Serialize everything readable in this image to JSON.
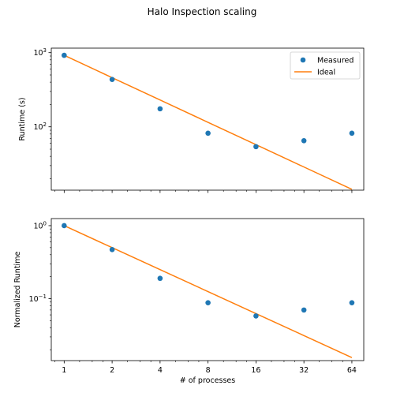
{
  "figure": {
    "title": "Halo Inspection scaling"
  },
  "colors": {
    "measured": "#1f77b4",
    "ideal": "#ff7f0e"
  },
  "chart_data": [
    {
      "type": "scatter",
      "title": "",
      "xlabel": "",
      "ylabel": "Runtime (s)",
      "xscale": "log2",
      "yscale": "log10",
      "x": [
        1,
        2,
        4,
        8,
        16,
        32,
        64
      ],
      "xlim": [
        0.83,
        76
      ],
      "ylim": [
        14,
        1150
      ],
      "yticks": [
        {
          "value": 100,
          "base": "10",
          "exp": "2"
        },
        {
          "value": 1000,
          "base": "10",
          "exp": "3"
        }
      ],
      "grid": false,
      "legend": "top-right",
      "series": [
        {
          "name": "Measured",
          "style": "markers",
          "values": [
            920,
            435,
            175,
            82,
            54,
            65,
            82
          ]
        },
        {
          "name": "Ideal",
          "style": "line",
          "values": [
            920,
            460,
            230,
            115,
            57.5,
            28.75,
            14.375
          ]
        }
      ]
    },
    {
      "type": "scatter",
      "title": "",
      "xlabel": "# of processes",
      "ylabel": "Normalized Runtime",
      "xscale": "log2",
      "yscale": "log10",
      "x": [
        1,
        2,
        4,
        8,
        16,
        32,
        64
      ],
      "xticks": [
        "1",
        "2",
        "4",
        "8",
        "16",
        "32",
        "64"
      ],
      "xlim": [
        0.83,
        76
      ],
      "ylim": [
        0.0142,
        1.25
      ],
      "yticks": [
        {
          "value": 0.1,
          "base": "10",
          "exp": "−1"
        },
        {
          "value": 1,
          "base": "10",
          "exp": "0"
        }
      ],
      "grid": false,
      "legend": "none",
      "series": [
        {
          "style": "markers",
          "values": [
            1.0,
            0.47,
            0.19,
            0.088,
            0.058,
            0.07,
            0.088
          ]
        },
        {
          "style": "line",
          "values": [
            1.0,
            0.5,
            0.25,
            0.125,
            0.0625,
            0.03125,
            0.015625
          ]
        }
      ]
    }
  ]
}
